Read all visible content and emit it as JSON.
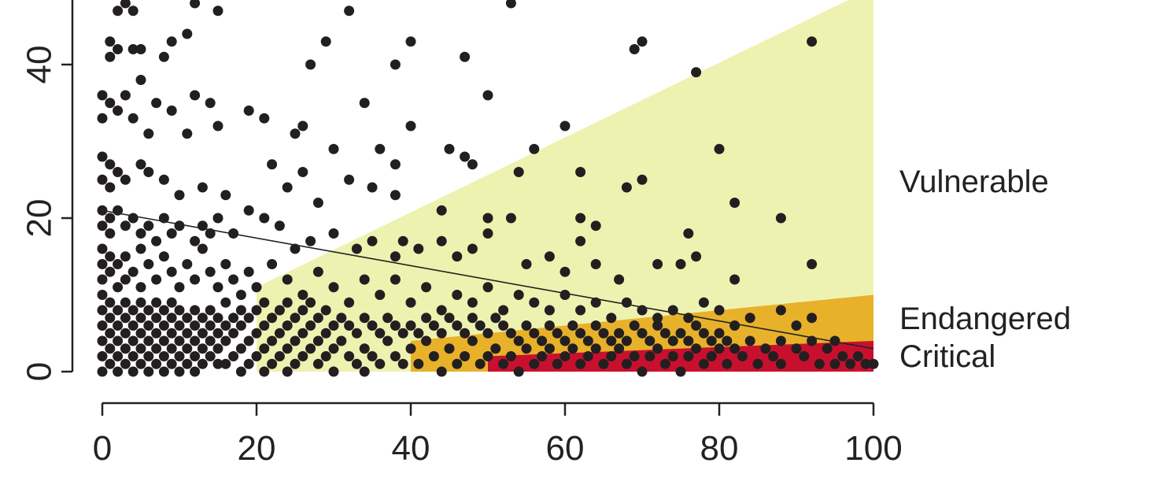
{
  "chart_data": {
    "type": "scatter",
    "title": "",
    "xlabel": "",
    "ylabel": "",
    "xlim": [
      0,
      100
    ],
    "ylim": [
      0,
      48
    ],
    "x_ticks": [
      0,
      20,
      40,
      60,
      80,
      100
    ],
    "y_ticks": [
      0,
      20,
      40
    ],
    "x_tick_labels": [
      "0",
      "20",
      "40",
      "60",
      "80",
      "100"
    ],
    "y_tick_labels": [
      "0",
      "20",
      "40"
    ],
    "zones": [
      {
        "label": "Vulnerable",
        "color": "#eef2b0",
        "polygon": [
          [
            20,
            0
          ],
          [
            20,
            11
          ],
          [
            100,
            50
          ],
          [
            100,
            0
          ]
        ]
      },
      {
        "label": "Endangered",
        "color": "#e8b12a",
        "polygon": [
          [
            40,
            0
          ],
          [
            40,
            4
          ],
          [
            100,
            10
          ],
          [
            100,
            0
          ]
        ]
      },
      {
        "label": "Critical",
        "color": "#c8102e",
        "polygon": [
          [
            50,
            0
          ],
          [
            50,
            2
          ],
          [
            100,
            4
          ],
          [
            100,
            0
          ]
        ]
      }
    ],
    "trend_line": [
      [
        0,
        21
      ],
      [
        100,
        3
      ]
    ],
    "points_color": "#231f20",
    "points": [
      [
        2,
        47
      ],
      [
        3,
        48
      ],
      [
        4,
        47
      ],
      [
        12,
        48
      ],
      [
        15,
        47
      ],
      [
        32,
        47
      ],
      [
        53,
        48
      ],
      [
        1,
        43
      ],
      [
        1,
        41
      ],
      [
        2,
        42
      ],
      [
        4,
        42
      ],
      [
        5,
        42
      ],
      [
        8,
        41
      ],
      [
        9,
        43
      ],
      [
        11,
        44
      ],
      [
        27,
        40
      ],
      [
        29,
        43
      ],
      [
        34,
        35
      ],
      [
        38,
        40
      ],
      [
        40,
        43
      ],
      [
        47,
        41
      ],
      [
        50,
        36
      ],
      [
        69,
        42
      ],
      [
        70,
        43
      ],
      [
        77,
        39
      ],
      [
        92,
        43
      ],
      [
        0,
        36
      ],
      [
        0,
        33
      ],
      [
        1,
        35
      ],
      [
        2,
        34
      ],
      [
        3,
        36
      ],
      [
        4,
        33
      ],
      [
        5,
        38
      ],
      [
        6,
        31
      ],
      [
        7,
        35
      ],
      [
        9,
        34
      ],
      [
        11,
        31
      ],
      [
        12,
        36
      ],
      [
        14,
        35
      ],
      [
        15,
        32
      ],
      [
        19,
        34
      ],
      [
        21,
        33
      ],
      [
        25,
        31
      ],
      [
        26,
        32
      ],
      [
        30,
        29
      ],
      [
        36,
        29
      ],
      [
        38,
        27
      ],
      [
        40,
        32
      ],
      [
        45,
        29
      ],
      [
        47,
        28
      ],
      [
        48,
        27
      ],
      [
        56,
        29
      ],
      [
        60,
        32
      ],
      [
        62,
        26
      ],
      [
        68,
        24
      ],
      [
        70,
        25
      ],
      [
        80,
        29
      ],
      [
        0,
        28
      ],
      [
        0,
        25
      ],
      [
        1,
        27
      ],
      [
        1,
        24
      ],
      [
        2,
        26
      ],
      [
        3,
        25
      ],
      [
        5,
        27
      ],
      [
        6,
        26
      ],
      [
        8,
        25
      ],
      [
        10,
        23
      ],
      [
        13,
        24
      ],
      [
        16,
        23
      ],
      [
        22,
        27
      ],
      [
        24,
        24
      ],
      [
        26,
        26
      ],
      [
        28,
        22
      ],
      [
        32,
        25
      ],
      [
        35,
        24
      ],
      [
        38,
        23
      ],
      [
        44,
        21
      ],
      [
        50,
        20
      ],
      [
        53,
        20
      ],
      [
        54,
        26
      ],
      [
        62,
        20
      ],
      [
        64,
        19
      ],
      [
        82,
        22
      ],
      [
        88,
        20
      ],
      [
        0,
        21
      ],
      [
        0,
        19
      ],
      [
        1,
        20
      ],
      [
        1,
        18
      ],
      [
        2,
        21
      ],
      [
        3,
        19
      ],
      [
        4,
        20
      ],
      [
        5,
        18
      ],
      [
        6,
        19
      ],
      [
        7,
        17
      ],
      [
        8,
        20
      ],
      [
        9,
        18
      ],
      [
        10,
        19
      ],
      [
        12,
        17
      ],
      [
        13,
        19
      ],
      [
        14,
        18
      ],
      [
        15,
        20
      ],
      [
        17,
        18
      ],
      [
        19,
        21
      ],
      [
        21,
        20
      ],
      [
        23,
        19
      ],
      [
        25,
        16
      ],
      [
        27,
        17
      ],
      [
        30,
        18
      ],
      [
        33,
        16
      ],
      [
        35,
        17
      ],
      [
        38,
        15
      ],
      [
        39,
        17
      ],
      [
        41,
        16
      ],
      [
        44,
        17
      ],
      [
        46,
        15
      ],
      [
        48,
        16
      ],
      [
        50,
        18
      ],
      [
        55,
        14
      ],
      [
        58,
        15
      ],
      [
        60,
        13
      ],
      [
        62,
        17
      ],
      [
        64,
        14
      ],
      [
        67,
        12
      ],
      [
        72,
        14
      ],
      [
        75,
        14
      ],
      [
        76,
        18
      ],
      [
        77,
        15
      ],
      [
        82,
        12
      ],
      [
        92,
        14
      ],
      [
        0,
        16
      ],
      [
        0,
        14
      ],
      [
        0,
        12
      ],
      [
        1,
        15
      ],
      [
        1,
        13
      ],
      [
        2,
        14
      ],
      [
        2,
        11
      ],
      [
        3,
        15
      ],
      [
        3,
        12
      ],
      [
        4,
        13
      ],
      [
        5,
        16
      ],
      [
        5,
        11
      ],
      [
        6,
        14
      ],
      [
        7,
        12
      ],
      [
        8,
        15
      ],
      [
        9,
        13
      ],
      [
        10,
        11
      ],
      [
        11,
        14
      ],
      [
        12,
        12
      ],
      [
        13,
        16
      ],
      [
        14,
        13
      ],
      [
        15,
        11
      ],
      [
        16,
        14
      ],
      [
        17,
        12
      ],
      [
        18,
        10
      ],
      [
        19,
        13
      ],
      [
        20,
        11
      ],
      [
        22,
        14
      ],
      [
        24,
        12
      ],
      [
        26,
        10
      ],
      [
        28,
        13
      ],
      [
        30,
        11
      ],
      [
        32,
        9
      ],
      [
        34,
        12
      ],
      [
        36,
        10
      ],
      [
        38,
        12
      ],
      [
        40,
        9
      ],
      [
        42,
        11
      ],
      [
        44,
        8
      ],
      [
        46,
        10
      ],
      [
        48,
        9
      ],
      [
        50,
        11
      ],
      [
        52,
        8
      ],
      [
        54,
        10
      ],
      [
        56,
        9
      ],
      [
        58,
        8
      ],
      [
        60,
        10
      ],
      [
        62,
        8
      ],
      [
        64,
        9
      ],
      [
        66,
        7
      ],
      [
        68,
        9
      ],
      [
        70,
        8
      ],
      [
        72,
        7
      ],
      [
        74,
        8
      ],
      [
        76,
        7
      ],
      [
        78,
        9
      ],
      [
        80,
        8
      ],
      [
        82,
        6
      ],
      [
        84,
        7
      ],
      [
        88,
        8
      ],
      [
        90,
        6
      ],
      [
        92,
        7
      ],
      [
        95,
        4
      ],
      [
        0,
        10
      ],
      [
        0,
        8
      ],
      [
        0,
        6
      ],
      [
        0,
        4
      ],
      [
        0,
        2
      ],
      [
        0,
        0
      ],
      [
        1,
        9
      ],
      [
        1,
        7
      ],
      [
        1,
        5
      ],
      [
        1,
        3
      ],
      [
        1,
        1
      ],
      [
        2,
        8
      ],
      [
        2,
        6
      ],
      [
        2,
        4
      ],
      [
        2,
        2
      ],
      [
        2,
        0
      ],
      [
        3,
        9
      ],
      [
        3,
        7
      ],
      [
        3,
        5
      ],
      [
        3,
        3
      ],
      [
        3,
        1
      ],
      [
        4,
        8
      ],
      [
        4,
        6
      ],
      [
        4,
        4
      ],
      [
        4,
        2
      ],
      [
        4,
        0
      ],
      [
        5,
        9
      ],
      [
        5,
        7
      ],
      [
        5,
        5
      ],
      [
        5,
        3
      ],
      [
        5,
        1
      ],
      [
        6,
        8
      ],
      [
        6,
        6
      ],
      [
        6,
        4
      ],
      [
        6,
        2
      ],
      [
        6,
        0
      ],
      [
        7,
        9
      ],
      [
        7,
        7
      ],
      [
        7,
        5
      ],
      [
        7,
        3
      ],
      [
        7,
        1
      ],
      [
        8,
        8
      ],
      [
        8,
        6
      ],
      [
        8,
        4
      ],
      [
        8,
        2
      ],
      [
        8,
        0
      ],
      [
        9,
        9
      ],
      [
        9,
        7
      ],
      [
        9,
        5
      ],
      [
        9,
        3
      ],
      [
        9,
        1
      ],
      [
        10,
        8
      ],
      [
        10,
        6
      ],
      [
        10,
        4
      ],
      [
        10,
        2
      ],
      [
        10,
        0
      ],
      [
        11,
        7
      ],
      [
        11,
        5
      ],
      [
        11,
        3
      ],
      [
        11,
        1
      ],
      [
        12,
        8
      ],
      [
        12,
        6
      ],
      [
        12,
        4
      ],
      [
        12,
        2
      ],
      [
        12,
        0
      ],
      [
        13,
        7
      ],
      [
        13,
        5
      ],
      [
        13,
        3
      ],
      [
        13,
        1
      ],
      [
        14,
        8
      ],
      [
        14,
        6
      ],
      [
        14,
        4
      ],
      [
        14,
        2
      ],
      [
        15,
        7
      ],
      [
        15,
        5
      ],
      [
        15,
        3
      ],
      [
        15,
        1
      ],
      [
        16,
        9
      ],
      [
        16,
        6
      ],
      [
        16,
        4
      ],
      [
        16,
        1
      ],
      [
        17,
        7
      ],
      [
        17,
        5
      ],
      [
        17,
        2
      ],
      [
        18,
        8
      ],
      [
        18,
        6
      ],
      [
        18,
        3
      ],
      [
        18,
        0
      ],
      [
        19,
        7
      ],
      [
        19,
        4
      ],
      [
        19,
        1
      ],
      [
        20,
        8
      ],
      [
        20,
        5
      ],
      [
        20,
        2
      ],
      [
        21,
        9
      ],
      [
        21,
        6
      ],
      [
        21,
        3
      ],
      [
        21,
        0
      ],
      [
        22,
        7
      ],
      [
        22,
        4
      ],
      [
        22,
        1
      ],
      [
        23,
        8
      ],
      [
        23,
        5
      ],
      [
        23,
        2
      ],
      [
        24,
        9
      ],
      [
        24,
        6
      ],
      [
        24,
        3
      ],
      [
        24,
        0
      ],
      [
        25,
        7
      ],
      [
        25,
        4
      ],
      [
        25,
        1
      ],
      [
        26,
        8
      ],
      [
        26,
        5
      ],
      [
        26,
        2
      ],
      [
        27,
        9
      ],
      [
        27,
        6
      ],
      [
        27,
        3
      ],
      [
        28,
        7
      ],
      [
        28,
        4
      ],
      [
        28,
        1
      ],
      [
        29,
        8
      ],
      [
        29,
        5
      ],
      [
        29,
        2
      ],
      [
        30,
        6
      ],
      [
        30,
        3
      ],
      [
        30,
        0
      ],
      [
        31,
        7
      ],
      [
        31,
        4
      ],
      [
        32,
        6
      ],
      [
        32,
        2
      ],
      [
        33,
        5
      ],
      [
        33,
        1
      ],
      [
        34,
        7
      ],
      [
        34,
        3
      ],
      [
        34,
        0
      ],
      [
        35,
        6
      ],
      [
        35,
        2
      ],
      [
        36,
        5
      ],
      [
        36,
        1
      ],
      [
        37,
        7
      ],
      [
        37,
        4
      ],
      [
        38,
        6
      ],
      [
        38,
        2
      ],
      [
        39,
        5
      ],
      [
        39,
        1
      ],
      [
        40,
        6
      ],
      [
        40,
        3
      ],
      [
        41,
        5
      ],
      [
        41,
        1
      ],
      [
        42,
        7
      ],
      [
        42,
        4
      ],
      [
        43,
        6
      ],
      [
        43,
        2
      ],
      [
        44,
        5
      ],
      [
        44,
        0
      ],
      [
        45,
        7
      ],
      [
        45,
        3
      ],
      [
        46,
        6
      ],
      [
        46,
        1
      ],
      [
        47,
        5
      ],
      [
        47,
        2
      ],
      [
        48,
        7
      ],
      [
        48,
        4
      ],
      [
        49,
        6
      ],
      [
        49,
        1
      ],
      [
        50,
        5
      ],
      [
        50,
        2
      ],
      [
        51,
        7
      ],
      [
        51,
        3
      ],
      [
        52,
        6
      ],
      [
        52,
        1
      ],
      [
        53,
        5
      ],
      [
        53,
        2
      ],
      [
        54,
        4
      ],
      [
        54,
        0
      ],
      [
        55,
        6
      ],
      [
        55,
        3
      ],
      [
        56,
        5
      ],
      [
        56,
        1
      ],
      [
        57,
        4
      ],
      [
        57,
        2
      ],
      [
        58,
        6
      ],
      [
        58,
        3
      ],
      [
        59,
        5
      ],
      [
        59,
        1
      ],
      [
        60,
        4
      ],
      [
        60,
        2
      ],
      [
        61,
        6
      ],
      [
        61,
        3
      ],
      [
        62,
        5
      ],
      [
        62,
        1
      ],
      [
        63,
        4
      ],
      [
        63,
        2
      ],
      [
        64,
        6
      ],
      [
        64,
        3
      ],
      [
        65,
        5
      ],
      [
        65,
        1
      ],
      [
        66,
        4
      ],
      [
        66,
        2
      ],
      [
        67,
        5
      ],
      [
        67,
        3
      ],
      [
        68,
        4
      ],
      [
        68,
        1
      ],
      [
        69,
        6
      ],
      [
        69,
        2
      ],
      [
        70,
        5
      ],
      [
        70,
        0
      ],
      [
        71,
        4
      ],
      [
        71,
        2
      ],
      [
        72,
        6
      ],
      [
        72,
        3
      ],
      [
        73,
        5
      ],
      [
        73,
        1
      ],
      [
        74,
        4
      ],
      [
        74,
        2
      ],
      [
        75,
        5
      ],
      [
        75,
        0
      ],
      [
        76,
        4
      ],
      [
        76,
        2
      ],
      [
        77,
        6
      ],
      [
        77,
        3
      ],
      [
        78,
        5
      ],
      [
        78,
        1
      ],
      [
        79,
        4
      ],
      [
        79,
        2
      ],
      [
        80,
        5
      ],
      [
        80,
        3
      ],
      [
        81,
        4
      ],
      [
        81,
        1
      ],
      [
        82,
        3
      ],
      [
        83,
        2
      ],
      [
        84,
        4
      ],
      [
        85,
        1
      ],
      [
        86,
        3
      ],
      [
        87,
        2
      ],
      [
        88,
        4
      ],
      [
        88,
        1
      ],
      [
        90,
        3
      ],
      [
        91,
        2
      ],
      [
        92,
        4
      ],
      [
        93,
        1
      ],
      [
        94,
        3
      ],
      [
        95,
        1
      ],
      [
        96,
        2
      ],
      [
        97,
        1
      ],
      [
        98,
        2
      ],
      [
        99,
        1
      ],
      [
        100,
        1
      ]
    ]
  },
  "zone_labels": {
    "vulnerable": "Vulnerable",
    "endangered": "Endangered",
    "critical": "Critical"
  }
}
